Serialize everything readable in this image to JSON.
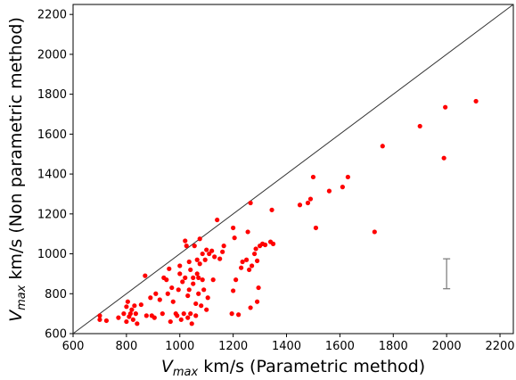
{
  "chart_data": {
    "type": "scatter",
    "xlabel": {
      "main": "V",
      "sub": "max",
      "rest": " km/s (Parametric method)"
    },
    "ylabel": {
      "main": "V",
      "sub": "max",
      "rest": " km/s (Non parametric method)"
    },
    "xlim": [
      600,
      2250
    ],
    "ylim": [
      600,
      2250
    ],
    "xticks": [
      600,
      800,
      1000,
      1200,
      1400,
      1600,
      1800,
      2000,
      2200
    ],
    "yticks": [
      600,
      800,
      1000,
      1200,
      1400,
      1600,
      1800,
      2000,
      2200
    ],
    "grid": false,
    "point_color": "#ff0000",
    "reference_line": {
      "from": [
        600,
        600
      ],
      "to": [
        2250,
        2250
      ],
      "color": "#333333"
    },
    "error_bar": {
      "x": 2000,
      "ymin": 825,
      "ymax": 975,
      "color": "#808080"
    },
    "points": [
      [
        700,
        670
      ],
      [
        700,
        690
      ],
      [
        725,
        665
      ],
      [
        770,
        680
      ],
      [
        790,
        700
      ],
      [
        800,
        660
      ],
      [
        800,
        735
      ],
      [
        805,
        760
      ],
      [
        810,
        685
      ],
      [
        815,
        700
      ],
      [
        820,
        720
      ],
      [
        825,
        670
      ],
      [
        830,
        740
      ],
      [
        835,
        700
      ],
      [
        840,
        650
      ],
      [
        855,
        745
      ],
      [
        870,
        890
      ],
      [
        875,
        690
      ],
      [
        890,
        780
      ],
      [
        895,
        690
      ],
      [
        905,
        680
      ],
      [
        910,
        800
      ],
      [
        925,
        770
      ],
      [
        935,
        700
      ],
      [
        940,
        880
      ],
      [
        950,
        870
      ],
      [
        955,
        800
      ],
      [
        960,
        925
      ],
      [
        965,
        660
      ],
      [
        970,
        830
      ],
      [
        975,
        760
      ],
      [
        985,
        700
      ],
      [
        990,
        690
      ],
      [
        995,
        820
      ],
      [
        1000,
        940
      ],
      [
        1000,
        900
      ],
      [
        1005,
        670
      ],
      [
        1010,
        860
      ],
      [
        1015,
        700
      ],
      [
        1020,
        880
      ],
      [
        1020,
        1065
      ],
      [
        1025,
        1040
      ],
      [
        1030,
        790
      ],
      [
        1030,
        680
      ],
      [
        1035,
        960
      ],
      [
        1035,
        820
      ],
      [
        1040,
        920
      ],
      [
        1040,
        700
      ],
      [
        1045,
        650
      ],
      [
        1050,
        880
      ],
      [
        1050,
        850
      ],
      [
        1055,
        1040
      ],
      [
        1060,
        750
      ],
      [
        1060,
        690
      ],
      [
        1065,
        970
      ],
      [
        1065,
        900
      ],
      [
        1070,
        880
      ],
      [
        1070,
        800
      ],
      [
        1075,
        950
      ],
      [
        1075,
        1075
      ],
      [
        1080,
        740
      ],
      [
        1085,
        1000
      ],
      [
        1085,
        870
      ],
      [
        1090,
        820
      ],
      [
        1095,
        970
      ],
      [
        1100,
        1020
      ],
      [
        1100,
        720
      ],
      [
        1105,
        780
      ],
      [
        1110,
        1000
      ],
      [
        1120,
        1015
      ],
      [
        1125,
        870
      ],
      [
        1130,
        985
      ],
      [
        1140,
        1170
      ],
      [
        1150,
        975
      ],
      [
        1160,
        1010
      ],
      [
        1165,
        1040
      ],
      [
        1195,
        700
      ],
      [
        1200,
        815
      ],
      [
        1200,
        1130
      ],
      [
        1205,
        1080
      ],
      [
        1210,
        870
      ],
      [
        1220,
        695
      ],
      [
        1230,
        930
      ],
      [
        1235,
        960
      ],
      [
        1250,
        970
      ],
      [
        1255,
        1110
      ],
      [
        1260,
        920
      ],
      [
        1265,
        730
      ],
      [
        1265,
        1255
      ],
      [
        1270,
        940
      ],
      [
        1280,
        1000
      ],
      [
        1285,
        1025
      ],
      [
        1290,
        760
      ],
      [
        1290,
        965
      ],
      [
        1295,
        830
      ],
      [
        1300,
        1040
      ],
      [
        1310,
        1050
      ],
      [
        1320,
        1045
      ],
      [
        1340,
        1060
      ],
      [
        1345,
        1220
      ],
      [
        1350,
        1050
      ],
      [
        1450,
        1245
      ],
      [
        1480,
        1255
      ],
      [
        1490,
        1275
      ],
      [
        1500,
        1385
      ],
      [
        1510,
        1130
      ],
      [
        1560,
        1315
      ],
      [
        1610,
        1335
      ],
      [
        1630,
        1385
      ],
      [
        1730,
        1110
      ],
      [
        1760,
        1540
      ],
      [
        1900,
        1640
      ],
      [
        1990,
        1480
      ],
      [
        1995,
        1735
      ],
      [
        2110,
        1765
      ]
    ]
  }
}
